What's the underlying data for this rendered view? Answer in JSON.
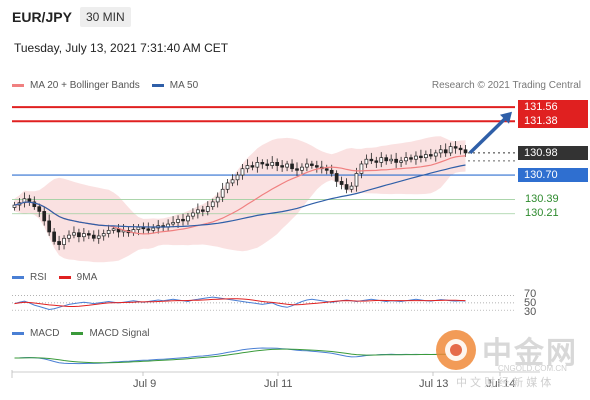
{
  "header": {
    "pair": "EUR/JPY",
    "timeframe": "30 MIN"
  },
  "datetime": "Tuesday, July 13, 2021 7:31:40 AM CET",
  "legend_main": [
    {
      "label": "MA 20 + Bollinger Bands",
      "color": "#f08080"
    },
    {
      "label": "MA 50",
      "color": "#2f5fa8"
    }
  ],
  "credit": "Research © 2021 Trading Central",
  "price_levels": [
    {
      "value": "131.56",
      "color": "#e02020",
      "style": "tag"
    },
    {
      "value": "131.38",
      "color": "#e02020",
      "style": "tag"
    },
    {
      "value": "130.98",
      "color": "#333333",
      "style": "tag"
    },
    {
      "value": "130.70",
      "color": "#2f6fd0",
      "style": "tag"
    },
    {
      "value": "130.39",
      "color": "#2e8b2e",
      "style": "text"
    },
    {
      "value": "130.21",
      "color": "#2e8b2e",
      "style": "text"
    }
  ],
  "legend_rsi": [
    {
      "label": "RSI",
      "color": "#4a7fd4"
    },
    {
      "label": "9MA",
      "color": "#e02020"
    }
  ],
  "rsi_levels": [
    "70",
    "50",
    "30"
  ],
  "legend_macd": [
    {
      "label": "MACD",
      "color": "#4a7fd4"
    },
    {
      "label": "MACD Signal",
      "color": "#3a9a3a"
    }
  ],
  "x_ticks": [
    "Jul 9",
    "Jul 11",
    "Jul 13",
    "Jul 14"
  ],
  "watermark": {
    "name": "中金网",
    "url": "CNGOLD.COM.CN",
    "tagline": "中 文 财 经 新 媒 体"
  },
  "chart_data": {
    "type": "candlestick",
    "title": "EUR/JPY 30 MIN",
    "ylim": [
      129.6,
      131.7
    ],
    "resistance": [
      131.56,
      131.38
    ],
    "pivot": 130.7,
    "support": [
      130.39,
      130.21
    ],
    "last_price": 130.98,
    "closes": [
      130.32,
      130.35,
      130.4,
      130.36,
      130.3,
      130.24,
      130.12,
      129.98,
      129.86,
      129.82,
      129.9,
      129.94,
      129.97,
      129.92,
      129.96,
      129.94,
      129.9,
      129.93,
      129.96,
      130.0,
      130.02,
      129.98,
      130.0,
      129.97,
      130.01,
      130.04,
      130.02,
      130.0,
      130.03,
      130.06,
      130.04,
      130.08,
      130.1,
      130.14,
      130.12,
      130.18,
      130.22,
      130.26,
      130.24,
      130.3,
      130.36,
      130.42,
      130.52,
      130.6,
      130.64,
      130.7,
      130.78,
      130.82,
      130.8,
      130.86,
      130.84,
      130.82,
      130.86,
      130.82,
      130.8,
      130.84,
      130.78,
      130.76,
      130.8,
      130.84,
      130.82,
      130.8,
      130.78,
      130.76,
      130.72,
      130.62,
      130.58,
      130.52,
      130.56,
      130.72,
      130.84,
      130.9,
      130.88,
      130.86,
      130.92,
      130.88,
      130.9,
      130.86,
      130.88,
      130.92,
      130.9,
      130.94,
      130.92,
      130.96,
      130.94,
      130.98,
      131.02,
      130.98,
      131.06,
      131.04,
      131.02,
      130.98
    ],
    "rsi": [
      48,
      52,
      55,
      50,
      44,
      40,
      36,
      32,
      34,
      38,
      42,
      46,
      48,
      50,
      52,
      50,
      48,
      50,
      52,
      54,
      52,
      50,
      52,
      54,
      56,
      54,
      52,
      54,
      56,
      58,
      56,
      58,
      60,
      58,
      56,
      54,
      58,
      60,
      62,
      64,
      66,
      64,
      62,
      60,
      58,
      56,
      54,
      52,
      50,
      48,
      46,
      48,
      50,
      44,
      40,
      38,
      42,
      48,
      54,
      58,
      60,
      58,
      56,
      54,
      52,
      54,
      56,
      58,
      56,
      54,
      56,
      58,
      60,
      58,
      56,
      54,
      56,
      55,
      54,
      56,
      58,
      60,
      58,
      56,
      55,
      57,
      59,
      58,
      56,
      55,
      56,
      55
    ]
  }
}
